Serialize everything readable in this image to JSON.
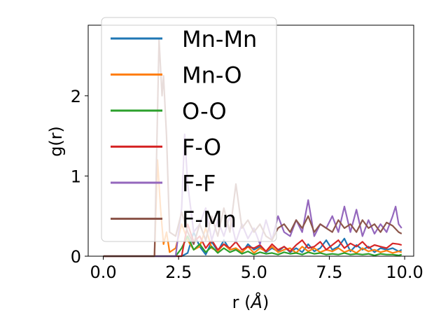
{
  "chart_data": {
    "type": "line",
    "title": "",
    "xlabel_prefix": "r (",
    "xlabel_unit": "Å",
    "xlabel_suffix": ")",
    "ylabel": "g(r)",
    "xlim": [
      -0.5,
      10.3
    ],
    "ylim": [
      0,
      2.88
    ],
    "x_ticks": [
      0.0,
      2.5,
      5.0,
      7.5,
      10.0
    ],
    "x_tick_labels": [
      "0.0",
      "2.5",
      "5.0",
      "7.5",
      "10.0"
    ],
    "y_ticks": [
      0,
      1,
      2
    ],
    "y_tick_labels": [
      "0",
      "1",
      "2"
    ],
    "grid": false,
    "legend_position": "upper-left",
    "series": [
      {
        "name": "Mn-Mn",
        "color": "#1f77b4",
        "x": [
          0,
          1,
          1.8,
          2.6,
          2.8,
          3.0,
          3.2,
          3.4,
          3.6,
          3.8,
          4.0,
          4.2,
          4.4,
          4.6,
          4.8,
          5.0,
          5.2,
          5.4,
          5.6,
          5.8,
          6.0,
          6.2,
          6.4,
          6.6,
          6.8,
          7.0,
          7.2,
          7.4,
          7.6,
          7.8,
          8.0,
          8.2,
          8.4,
          8.6,
          8.8,
          9.0,
          9.2,
          9.4,
          9.6,
          9.8,
          9.9
        ],
        "y": [
          0,
          0,
          0,
          0,
          0.04,
          0.3,
          0.12,
          0.02,
          0.18,
          0.06,
          0.2,
          0.08,
          0.1,
          0.04,
          0.15,
          0.08,
          0.12,
          0.05,
          0.1,
          0.06,
          0.12,
          0.05,
          0.1,
          0.05,
          0.15,
          0.06,
          0.1,
          0.2,
          0.08,
          0.12,
          0.22,
          0.06,
          0.14,
          0.08,
          0.12,
          0.05,
          0.1,
          0.08,
          0.1,
          0.06,
          0.08
        ]
      },
      {
        "name": "Mn-O",
        "color": "#ff7f0e",
        "x": [
          0,
          1,
          1.7,
          1.8,
          1.9,
          2.0,
          2.1,
          2.2,
          2.4,
          2.6,
          2.8,
          3.0,
          3.2,
          3.4,
          3.6,
          3.8,
          4.0,
          4.2,
          4.4,
          4.6,
          4.8,
          5.0,
          5.2,
          5.4,
          5.6,
          5.8,
          6.0,
          6.2,
          6.4,
          6.6,
          6.8,
          7.0,
          7.2,
          7.4,
          7.6,
          7.8,
          8.0,
          8.2,
          8.4,
          8.6,
          8.8,
          9.0,
          9.2,
          9.4,
          9.6,
          9.8,
          9.9
        ],
        "y": [
          0,
          0,
          0,
          1.2,
          0.6,
          0.15,
          0.3,
          0.05,
          0.1,
          0.4,
          0.2,
          0.08,
          0.12,
          0.35,
          0.1,
          0.06,
          0.15,
          0.08,
          0.1,
          0.05,
          0.12,
          0.04,
          0.1,
          0.06,
          0.12,
          0.05,
          0.08,
          0.1,
          0.04,
          0.12,
          0.06,
          0.1,
          0.05,
          0.08,
          0.06,
          0.1,
          0.05,
          0.08,
          0.04,
          0.1,
          0.06,
          0.08,
          0.05,
          0.07,
          0.04,
          0.06,
          0.05
        ]
      },
      {
        "name": "O-O",
        "color": "#2ca02c",
        "x": [
          0,
          1,
          2.4,
          2.6,
          2.8,
          3.0,
          3.2,
          3.4,
          3.6,
          3.8,
          4.0,
          4.2,
          4.4,
          4.6,
          4.8,
          5.0,
          5.2,
          5.4,
          5.6,
          5.8,
          6.0,
          6.2,
          6.4,
          6.6,
          6.8,
          7.0,
          7.2,
          7.4,
          7.6,
          7.8,
          8.0,
          8.2,
          8.4,
          8.6,
          8.8,
          9.0,
          9.2,
          9.4,
          9.6,
          9.8,
          9.9
        ],
        "y": [
          0,
          0,
          0,
          0.1,
          0.25,
          0.08,
          0.15,
          0.05,
          0.12,
          0.04,
          0.1,
          0.05,
          0.08,
          0.03,
          0.06,
          0.02,
          0.05,
          0.03,
          0.04,
          0.02,
          0.05,
          0.03,
          0.04,
          0.02,
          0.05,
          0.03,
          0.04,
          0.02,
          0.03,
          0.02,
          0.04,
          0.02,
          0.03,
          0.02,
          0.03,
          0.01,
          0.03,
          0.02,
          0.02,
          0.01,
          0.02
        ]
      },
      {
        "name": "F-O",
        "color": "#d62728",
        "x": [
          0,
          1,
          2.6,
          2.8,
          3.0,
          3.2,
          3.4,
          3.6,
          3.8,
          4.0,
          4.2,
          4.4,
          4.6,
          4.8,
          5.0,
          5.2,
          5.4,
          5.6,
          5.8,
          6.0,
          6.2,
          6.4,
          6.6,
          6.8,
          7.0,
          7.2,
          7.4,
          7.6,
          7.8,
          8.0,
          8.2,
          8.4,
          8.6,
          8.8,
          9.0,
          9.2,
          9.4,
          9.6,
          9.8,
          9.9
        ],
        "y": [
          0,
          0,
          0,
          0.4,
          0.18,
          0.25,
          0.1,
          0.2,
          0.08,
          0.15,
          0.1,
          0.18,
          0.08,
          0.12,
          0.1,
          0.14,
          0.06,
          0.15,
          0.08,
          0.12,
          0.06,
          0.14,
          0.2,
          0.1,
          0.12,
          0.18,
          0.08,
          0.14,
          0.2,
          0.1,
          0.16,
          0.12,
          0.18,
          0.1,
          0.14,
          0.12,
          0.1,
          0.16,
          0.15,
          0.14
        ]
      },
      {
        "name": "F-F",
        "color": "#9467bd",
        "x": [
          0,
          1,
          2.4,
          2.6,
          2.7,
          2.8,
          3.0,
          3.2,
          3.4,
          3.6,
          3.8,
          4.0,
          4.2,
          4.4,
          4.6,
          4.8,
          5.0,
          5.2,
          5.4,
          5.6,
          5.8,
          6.0,
          6.2,
          6.4,
          6.6,
          6.8,
          7.0,
          7.2,
          7.4,
          7.6,
          7.8,
          8.0,
          8.2,
          8.4,
          8.6,
          8.8,
          9.0,
          9.2,
          9.4,
          9.6,
          9.7,
          9.8,
          9.9
        ],
        "y": [
          0,
          0,
          0,
          0.6,
          1.52,
          0.9,
          0.3,
          0.4,
          0.6,
          0.2,
          0.45,
          0.25,
          0.5,
          0.18,
          0.4,
          0.22,
          0.35,
          0.15,
          0.45,
          0.2,
          0.5,
          0.3,
          0.25,
          0.45,
          0.3,
          0.7,
          0.25,
          0.4,
          0.35,
          0.5,
          0.3,
          0.62,
          0.3,
          0.58,
          0.25,
          0.45,
          0.28,
          0.4,
          0.3,
          0.5,
          0.62,
          0.4,
          0.35
        ]
      },
      {
        "name": "F-Mn",
        "color": "#8c564b",
        "x": [
          0,
          1,
          1.7,
          1.85,
          1.95,
          2.0,
          2.1,
          2.2,
          2.4,
          2.6,
          2.8,
          3.0,
          3.2,
          3.4,
          3.6,
          3.8,
          4.0,
          4.2,
          4.4,
          4.6,
          4.8,
          5.0,
          5.2,
          5.4,
          5.6,
          5.8,
          6.0,
          6.2,
          6.4,
          6.6,
          6.8,
          7.0,
          7.2,
          7.4,
          7.6,
          7.8,
          8.0,
          8.2,
          8.4,
          8.6,
          8.8,
          9.0,
          9.2,
          9.4,
          9.6,
          9.8,
          9.9
        ],
        "y": [
          0,
          0,
          0,
          2.7,
          2.0,
          2.25,
          1.5,
          0.3,
          0.25,
          0.55,
          0.3,
          0.15,
          0.4,
          0.2,
          0.5,
          0.25,
          0.6,
          0.3,
          0.9,
          0.35,
          0.45,
          0.3,
          0.4,
          0.25,
          0.2,
          0.35,
          0.4,
          0.3,
          0.45,
          0.35,
          0.5,
          0.3,
          0.4,
          0.35,
          0.3,
          0.45,
          0.35,
          0.4,
          0.3,
          0.45,
          0.35,
          0.4,
          0.3,
          0.42,
          0.38,
          0.3,
          0.28
        ]
      }
    ]
  }
}
